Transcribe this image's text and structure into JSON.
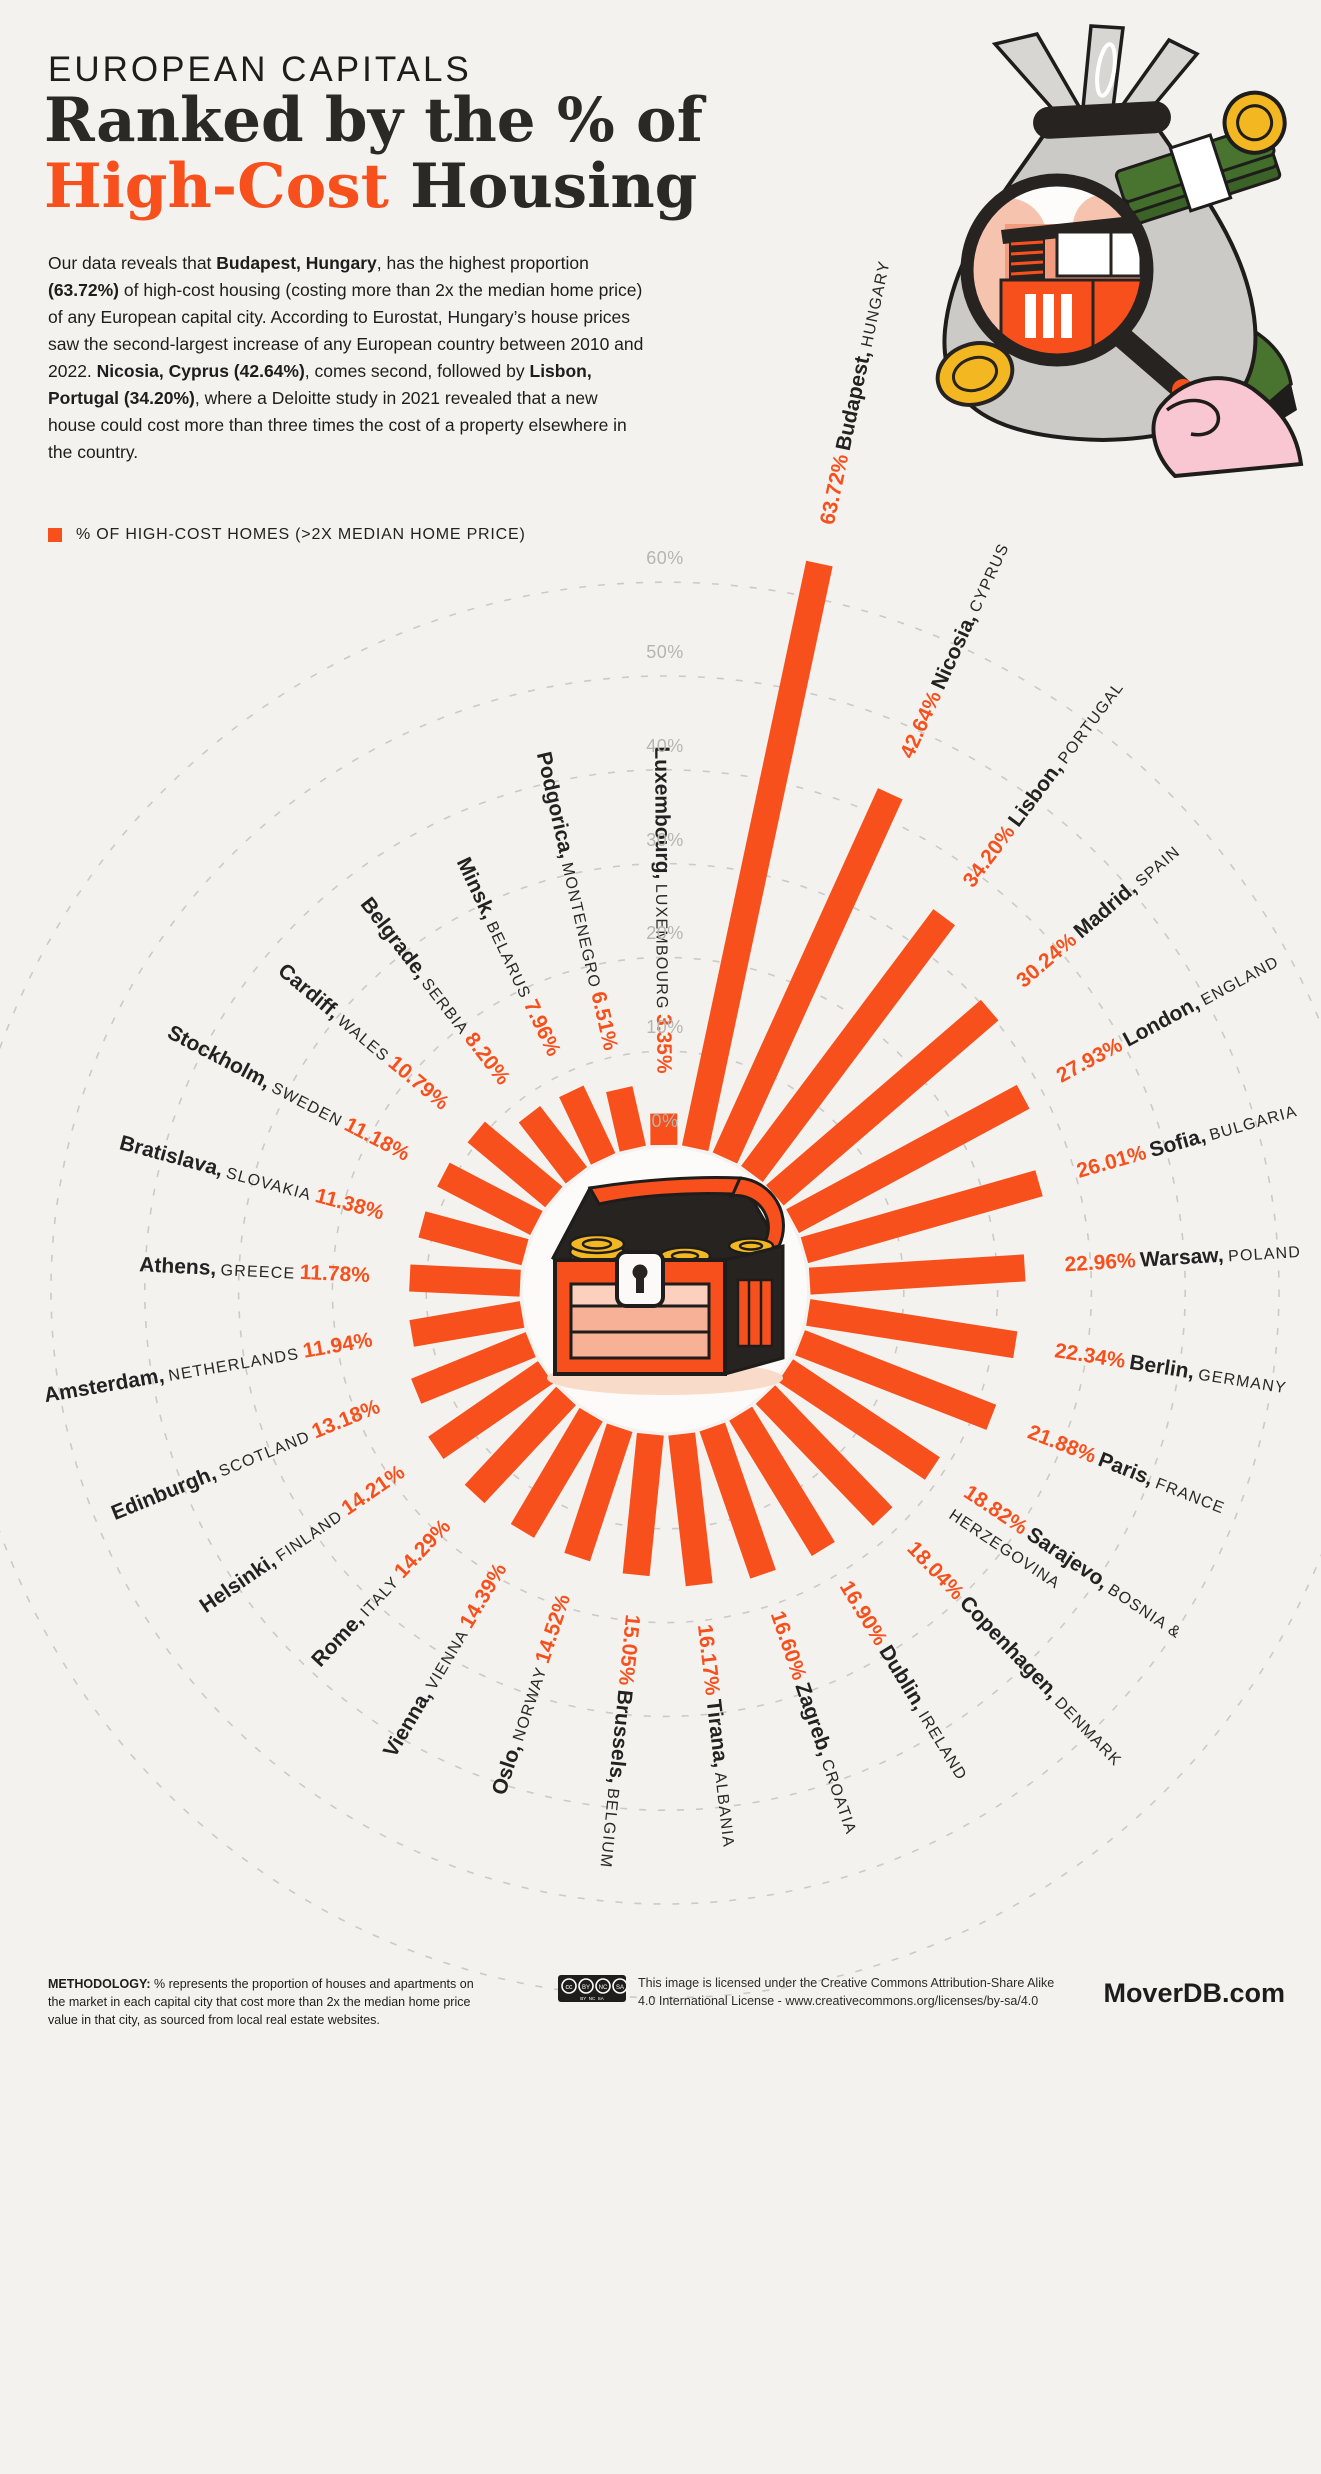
{
  "page": {
    "background": "#F3F2EF",
    "accent": "#F8501C",
    "text_dark": "#232220"
  },
  "header": {
    "kicker": "EUROPEAN CAPITALS",
    "title_line1": "Ranked by the % of",
    "title_accent": "High-Cost",
    "title_rest": " Housing",
    "paragraph": [
      {
        "t": "Our data reveals that ",
        "b": false
      },
      {
        "t": "Budapest, Hungary",
        "b": true
      },
      {
        "t": ", has the highest proportion ",
        "b": false
      },
      {
        "t": "(63.72%)",
        "b": true
      },
      {
        "t": " of high-cost housing (costing more than 2x the median home price) of any European capital city. According to Eurostat, Hungary’s house prices saw the second-largest increase of any European country between 2010 and 2022. ",
        "b": false
      },
      {
        "t": "Nicosia, Cyprus (42.64%)",
        "b": true
      },
      {
        "t": ", comes second, followed by ",
        "b": false
      },
      {
        "t": "Lisbon, Portugal (34.20%)",
        "b": true
      },
      {
        "t": ", where a Deloitte study in 2021 revealed that a new house could cost more than three times the cost of a property elsewhere in the country.",
        "b": false
      }
    ],
    "legend_label": "% OF HIGH-COST HOMES (>2X MEDIAN HOME PRICE)",
    "legend_color": "#F8501C"
  },
  "chart_data": {
    "type": "bar",
    "subtype": "radial-bar",
    "unit": "%",
    "ylim": [
      0,
      60
    ],
    "grid": "dashed concentric circles every 10%",
    "legend_position": "top-left",
    "bar_color": "#F8501C",
    "ticks_pct": [
      0,
      10,
      20,
      30,
      40,
      50,
      60
    ],
    "tick_labels": [
      "0%",
      "10%",
      "20%",
      "30%",
      "40%",
      "50%",
      "60%"
    ],
    "series": [
      {
        "city": "Budapest",
        "country": "HUNGARY",
        "value": 63.72,
        "label": "63.72%"
      },
      {
        "city": "Nicosia",
        "country": "CYPRUS",
        "value": 42.64,
        "label": "42.64%"
      },
      {
        "city": "Lisbon",
        "country": "PORTUGAL",
        "value": 34.2,
        "label": "34.20%"
      },
      {
        "city": "Madrid",
        "country": "SPAIN",
        "value": 30.24,
        "label": "30.24%"
      },
      {
        "city": "London",
        "country": "ENGLAND",
        "value": 27.93,
        "label": "27.93%"
      },
      {
        "city": "Sofia",
        "country": "BULGARIA",
        "value": 26.01,
        "label": "26.01%"
      },
      {
        "city": "Warsaw",
        "country": "POLAND",
        "value": 22.96,
        "label": "22.96%"
      },
      {
        "city": "Berlin",
        "country": "GERMANY",
        "value": 22.34,
        "label": "22.34%"
      },
      {
        "city": "Paris",
        "country": "FRANCE",
        "value": 21.88,
        "label": "21.88%"
      },
      {
        "city": "Sarajevo",
        "country": "BOSNIA &",
        "country2": "HERZEGOVINA",
        "value": 18.82,
        "label": "18.82%"
      },
      {
        "city": "Copenhagen",
        "country": "DENMARK",
        "value": 18.04,
        "label": "18.04%"
      },
      {
        "city": "Dublin",
        "country": "IRELAND",
        "value": 16.9,
        "label": "16.90%"
      },
      {
        "city": "Zagreb",
        "country": "CROATIA",
        "value": 16.6,
        "label": "16.60%"
      },
      {
        "city": "Tirana",
        "country": "ALBANIA",
        "value": 16.17,
        "label": "16.17%"
      },
      {
        "city": "Brussels",
        "country": "BELGIUM",
        "value": 15.05,
        "label": "15.05%"
      },
      {
        "city": "Oslo",
        "country": "NORWAY",
        "value": 14.52,
        "label": "14.52%"
      },
      {
        "city": "Vienna",
        "country": "VIENNA",
        "value": 14.39,
        "label": "14.39%"
      },
      {
        "city": "Rome",
        "country": "ITALY",
        "value": 14.29,
        "label": "14.29%"
      },
      {
        "city": "Helsinki",
        "country": "FINLAND",
        "value": 14.21,
        "label": "14.21%"
      },
      {
        "city": "Edinburgh",
        "country": "SCOTLAND",
        "value": 13.18,
        "label": "13.18%"
      },
      {
        "city": "Amsterdam",
        "country": "NETHERLANDS",
        "value": 11.94,
        "label": "11.94%"
      },
      {
        "city": "Athens",
        "country": "GREECE",
        "value": 11.78,
        "label": "11.78%"
      },
      {
        "city": "Bratislava",
        "country": "SLOVAKIA",
        "value": 11.38,
        "label": "11.38%"
      },
      {
        "city": "Stockholm",
        "country": "SWEDEN",
        "value": 11.18,
        "label": "11.18%"
      },
      {
        "city": "Cardiff",
        "country": "WALES",
        "value": 10.79,
        "label": "10.79%"
      },
      {
        "city": "Belgrade",
        "country": "SERBIA",
        "value": 8.2,
        "label": "8.20%"
      },
      {
        "city": "Minsk",
        "country": "BELARUS",
        "value": 7.96,
        "label": "7.96%"
      },
      {
        "city": "Podgorica",
        "country": "MONTENEGRO",
        "value": 6.51,
        "label": "6.51%"
      },
      {
        "city": "Luxembourg",
        "country": "LUXEMBOURG",
        "value": 3.35,
        "label": "3.35%"
      }
    ]
  },
  "footer": {
    "methodology_label": "METHODOLOGY:",
    "methodology_text": " % represents the proportion of houses and apartments on the market in each capital city that cost more than 2x the median home price value in that city, as sourced from local real estate websites.",
    "license_badge": "cc-by-nc-sa-badge",
    "license_text": "This image is licensed under the Creative Commons Attribution-Share Alike 4.0 International License - www.creativecommons.org/licenses/by-sa/4.0",
    "brand": "MoverDB.com"
  }
}
